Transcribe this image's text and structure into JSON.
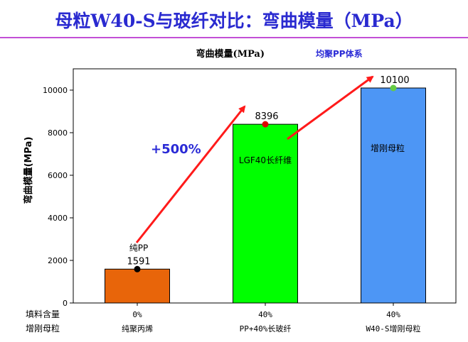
{
  "slide": {
    "title": "母粒W40-S与玻纤对比：弯曲模量（MPa）"
  },
  "colors": {
    "title": "#2a2ad0",
    "rule": "#c24fd6",
    "arrow": "#ff1a1a",
    "subtitle": "#2b2bd6"
  },
  "chart_data": {
    "type": "bar",
    "title": "弯曲模量(MPa)",
    "subtitle": "均聚PP体系",
    "ylabel": "弯曲模量(MPa)",
    "ylim": [
      0,
      11000
    ],
    "yticks": [
      0,
      2000,
      4000,
      6000,
      8000,
      10000
    ],
    "categories": [
      "纯聚丙烯",
      "PP+40%长玻纤",
      "W40-S增刚母粒"
    ],
    "fill_levels": [
      "0%",
      "40%",
      "40%"
    ],
    "values": [
      1591,
      8396,
      10100
    ],
    "value_labels": [
      "1591",
      "8396",
      "10100"
    ],
    "bar_colors": [
      "#e8650a",
      "#00ff00",
      "#4d96f5"
    ],
    "marker_colors": [
      "#000000",
      "#e00000",
      "#66cc44"
    ],
    "inbar_labels": [
      "纯PP",
      "LGF40长纤维",
      "增刚母粒"
    ],
    "row_headers": [
      "填料含量",
      "增刚母粒"
    ],
    "annotation": "+500%"
  }
}
